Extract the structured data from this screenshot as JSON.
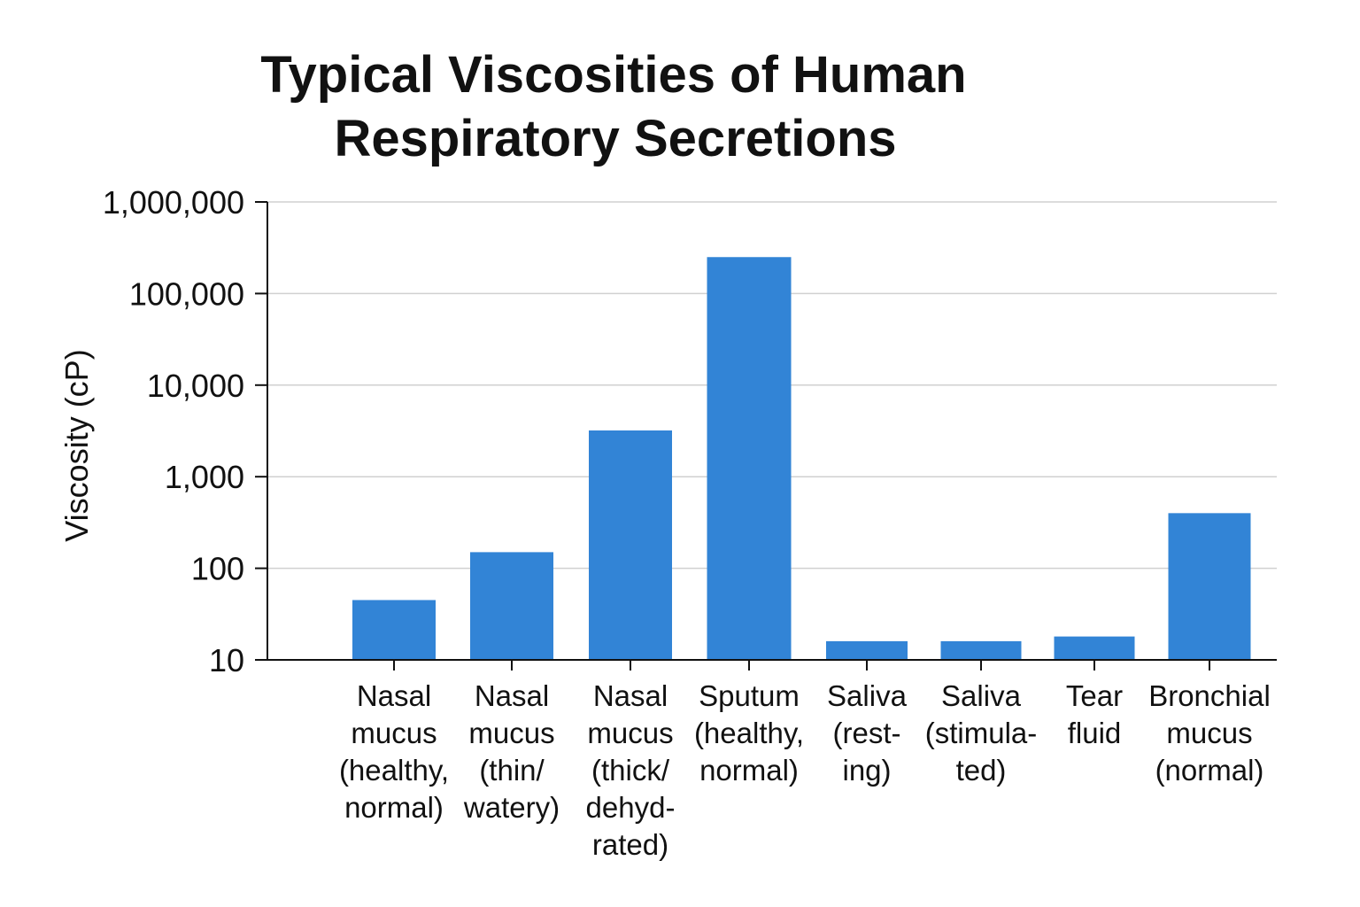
{
  "chart_data": {
    "type": "bar",
    "title": [
      "Typical Viscosities of Human",
      "Respiratory Secretions"
    ],
    "xlabel": "",
    "ylabel": "Viscosity (cP)",
    "yscale": "log",
    "ylim": [
      10,
      1000000
    ],
    "yticks": [
      10,
      100,
      1000,
      10000,
      100000,
      1000000
    ],
    "ytick_labels": [
      "10",
      "100",
      "1,000",
      "10,000",
      "100,000",
      "1,000,000"
    ],
    "grid": true,
    "bar_color": "#3284d6",
    "categories": [
      [
        "Nasal",
        "mucus",
        "(healthy,",
        "normal)"
      ],
      [
        "Nasal",
        "mucus",
        "(thin/",
        "watery)"
      ],
      [
        "Nasal",
        "mucus",
        "(thick/",
        "dehyd-",
        "rated)"
      ],
      [
        "Sputum",
        "(healthy,",
        "normal)"
      ],
      [
        "Saliva",
        "(rest-",
        "ing)"
      ],
      [
        "Saliva",
        "(stimula-",
        "ted)"
      ],
      [
        "Tear",
        "fluid"
      ],
      [
        "Bronchial",
        "mucus",
        "(normal)"
      ]
    ],
    "values": [
      45,
      150,
      3200,
      250000,
      16,
      16,
      18,
      400
    ]
  }
}
